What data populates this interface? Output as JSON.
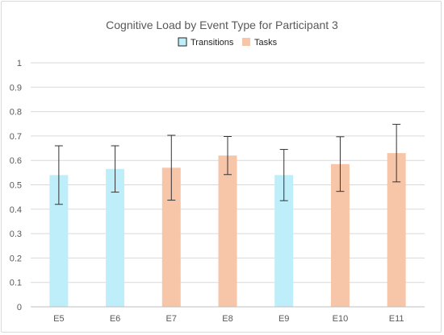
{
  "chart_data": {
    "type": "bar",
    "title": "Cognitive Load by Event Type for Participant 3",
    "xlabel": "",
    "ylabel": "",
    "categories": [
      "E5",
      "E6",
      "E7",
      "E8",
      "E9",
      "E10",
      "E11"
    ],
    "values": [
      0.54,
      0.565,
      0.57,
      0.62,
      0.54,
      0.585,
      0.63
    ],
    "errors": [
      0.12,
      0.095,
      0.133,
      0.078,
      0.105,
      0.112,
      0.118
    ],
    "groups": [
      "Transitions",
      "Transitions",
      "Tasks",
      "Tasks",
      "Transitions",
      "Tasks",
      "Tasks"
    ],
    "legend": [
      {
        "name": "Transitions",
        "color": "#bdeef9"
      },
      {
        "name": "Tasks",
        "color": "#f7c6a9"
      }
    ],
    "legend_position": "top",
    "ylim": [
      0,
      1
    ],
    "yticks": [
      "0",
      "0.1",
      "0.2",
      "0.3",
      "0.4",
      "0.5",
      "0.6",
      "0.7",
      "0.8",
      "0.9",
      "1"
    ],
    "grid": true
  }
}
